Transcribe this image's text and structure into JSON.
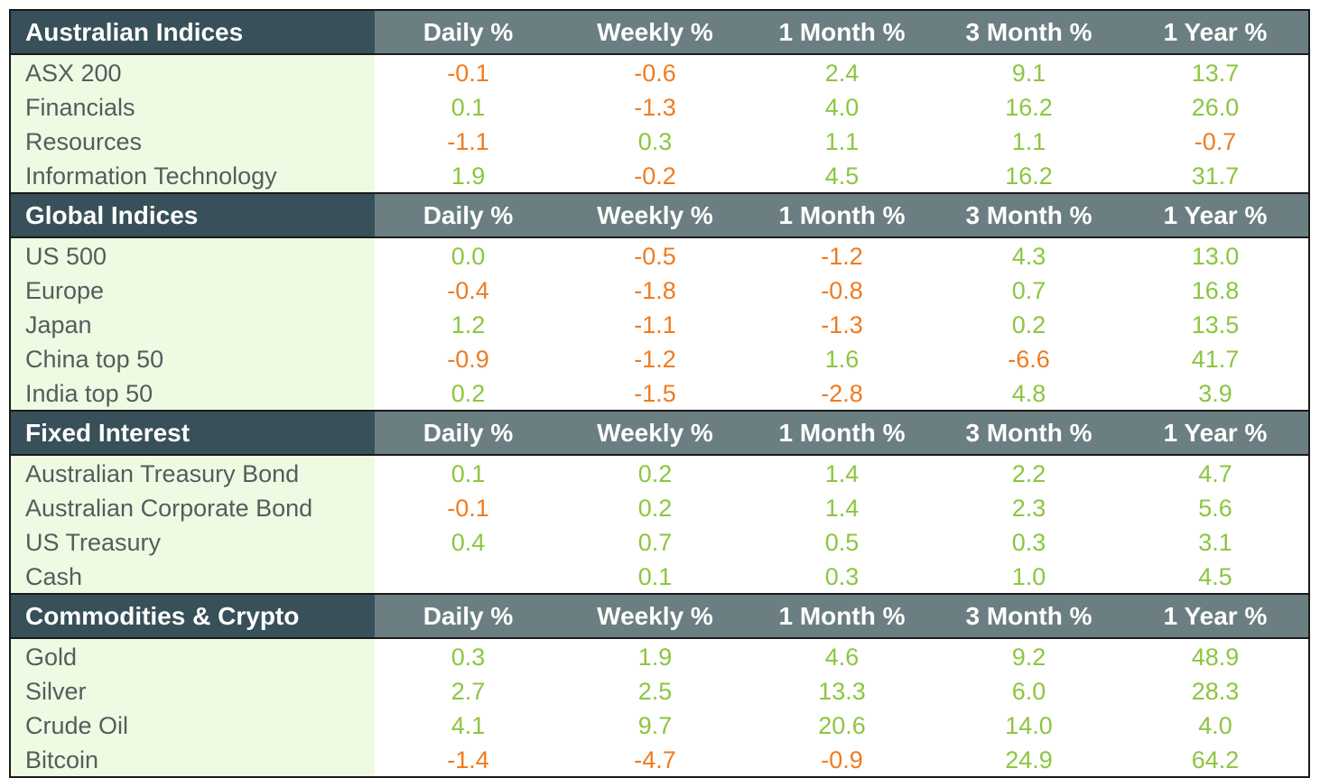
{
  "colors": {
    "positive": "#8cc63f",
    "negative": "#f07b1e",
    "section_title_bg": "#37505a",
    "section_column_bg": "#6b7f82",
    "name_column_bg": "#eefbe2"
  },
  "sections": [
    {
      "title": "Australian Indices",
      "columns": [
        "Daily %",
        "Weekly %",
        "1 Month %",
        "3 Month %",
        "1 Year %"
      ],
      "rows": [
        {
          "name": "ASX 200",
          "values": [
            "-0.1",
            "-0.6",
            "2.4",
            "9.1",
            "13.7"
          ]
        },
        {
          "name": "Financials",
          "values": [
            "0.1",
            "-1.3",
            "4.0",
            "16.2",
            "26.0"
          ]
        },
        {
          "name": "Resources",
          "values": [
            "-1.1",
            "0.3",
            "1.1",
            "1.1",
            "-0.7"
          ]
        },
        {
          "name": "Information Technology",
          "values": [
            "1.9",
            "-0.2",
            "4.5",
            "16.2",
            "31.7"
          ]
        }
      ]
    },
    {
      "title": "Global Indices",
      "columns": [
        "Daily %",
        "Weekly %",
        "1 Month %",
        "3 Month %",
        "1 Year %"
      ],
      "rows": [
        {
          "name": "US 500",
          "values": [
            "0.0",
            "-0.5",
            "-1.2",
            "4.3",
            "13.0"
          ]
        },
        {
          "name": "Europe",
          "values": [
            "-0.4",
            "-1.8",
            "-0.8",
            "0.7",
            "16.8"
          ]
        },
        {
          "name": "Japan",
          "values": [
            "1.2",
            "-1.1",
            "-1.3",
            "0.2",
            "13.5"
          ]
        },
        {
          "name": "China top 50",
          "values": [
            "-0.9",
            "-1.2",
            "1.6",
            "-6.6",
            "41.7"
          ]
        },
        {
          "name": "India top 50",
          "values": [
            "0.2",
            "-1.5",
            "-2.8",
            "4.8",
            "3.9"
          ]
        }
      ]
    },
    {
      "title": "Fixed Interest",
      "columns": [
        "Daily %",
        "Weekly %",
        "1 Month %",
        "3 Month %",
        "1 Year %"
      ],
      "rows": [
        {
          "name": "Australian Treasury Bond",
          "values": [
            "0.1",
            "0.2",
            "1.4",
            "2.2",
            "4.7"
          ]
        },
        {
          "name": "Australian Corporate Bond",
          "values": [
            "-0.1",
            "0.2",
            "1.4",
            "2.3",
            "5.6"
          ]
        },
        {
          "name": "US Treasury",
          "values": [
            "0.4",
            "0.7",
            "0.5",
            "0.3",
            "3.1"
          ]
        },
        {
          "name": "Cash",
          "values": [
            "",
            "0.1",
            "0.3",
            "1.0",
            "4.5"
          ]
        }
      ]
    },
    {
      "title": "Commodities & Crypto",
      "columns": [
        "Daily %",
        "Weekly %",
        "1 Month %",
        "3 Month %",
        "1 Year %"
      ],
      "rows": [
        {
          "name": "Gold",
          "values": [
            "0.3",
            "1.9",
            "4.6",
            "9.2",
            "48.9"
          ]
        },
        {
          "name": "Silver",
          "values": [
            "2.7",
            "2.5",
            "13.3",
            "6.0",
            "28.3"
          ]
        },
        {
          "name": "Crude Oil",
          "values": [
            "4.1",
            "9.7",
            "20.6",
            "14.0",
            "4.0"
          ]
        },
        {
          "name": "Bitcoin",
          "values": [
            "-1.4",
            "-4.7",
            "-0.9",
            "24.9",
            "64.2"
          ]
        }
      ]
    }
  ]
}
